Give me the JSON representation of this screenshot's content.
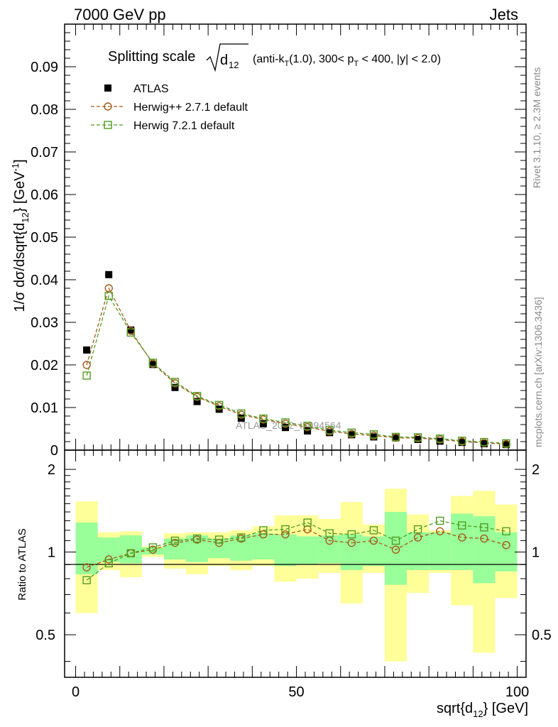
{
  "header": {
    "left": "7000 GeV pp",
    "right": "Jets"
  },
  "side_labels": {
    "rivet": "Rivet 3.1.10, ≥ 2.3M events",
    "mcplots": "mcplots.cern.ch [arXiv:1306.3436]"
  },
  "watermark": "ATLAS_2012_I1094564",
  "colors": {
    "data": "#000000",
    "herwigpp": "#a65a19",
    "herwig7": "#4f9c1f",
    "band_inner": "#99ff99",
    "band_outer": "#ffff99"
  },
  "chart_data": [
    {
      "type": "scatter",
      "title": "Splitting scale",
      "title_detail": "(anti-k_T(1.0), 300< p_T < 400, |y| < 2.0)",
      "xlabel": "sqrt{d_12} [GeV]",
      "ylabel": "1/σ dσ/dsqrt{d_12} [GeV^-1]",
      "xlim": [
        -2.5,
        102
      ],
      "ylim": [
        0,
        0.1
      ],
      "yticks": [
        "0",
        "0.01",
        "0.02",
        "0.03",
        "0.04",
        "0.05",
        "0.06",
        "0.07",
        "0.08",
        "0.09"
      ],
      "legend_position": "top-left",
      "x": [
        2.5,
        7.5,
        12.5,
        17.5,
        22.5,
        27.5,
        32.5,
        37.5,
        42.5,
        47.5,
        52.5,
        57.5,
        62.5,
        67.5,
        72.5,
        77.5,
        82.5,
        87.5,
        92.5,
        97.5
      ],
      "series": [
        {
          "name": "ATLAS",
          "marker": "filled-square",
          "values": [
            0.0235,
            0.0412,
            0.0282,
            0.0201,
            0.0147,
            0.0114,
            0.0096,
            0.0075,
            0.0062,
            0.0053,
            0.0045,
            0.0041,
            0.0036,
            0.0031,
            0.0029,
            0.0025,
            0.0021,
            0.0018,
            0.0015,
            0.0013
          ]
        },
        {
          "name": "Herwig++ 2.7.1 default",
          "marker": "open-circle",
          "line": "dashed",
          "values": [
            0.02,
            0.038,
            0.028,
            0.0203,
            0.0157,
            0.0125,
            0.0103,
            0.0083,
            0.0072,
            0.0062,
            0.0054,
            0.0044,
            0.0038,
            0.0034,
            0.0029,
            0.0028,
            0.0025,
            0.002,
            0.0017,
            0.0014
          ]
        },
        {
          "name": "Herwig 7.2.1 default",
          "marker": "open-square",
          "line": "dashed",
          "values": [
            0.0175,
            0.0362,
            0.0276,
            0.0205,
            0.016,
            0.0127,
            0.0106,
            0.0086,
            0.0074,
            0.0065,
            0.0057,
            0.0047,
            0.0041,
            0.0037,
            0.0031,
            0.003,
            0.0027,
            0.0022,
            0.0019,
            0.0016
          ]
        }
      ]
    },
    {
      "type": "scatter",
      "ylabel": "Ratio to ATLAS",
      "xlabel": "sqrt{d_12} [GeV]",
      "xlim": [
        -2.5,
        102
      ],
      "ylim": [
        0.35,
        2.35
      ],
      "ylog": true,
      "xticks": [
        "0",
        "50",
        "100"
      ],
      "yticks": [
        "0.5",
        "1",
        "2"
      ],
      "bin_edges": [
        0,
        5,
        10,
        15,
        20,
        25,
        30,
        35,
        40,
        45,
        50,
        55,
        60,
        65,
        70,
        75,
        80,
        85,
        90,
        95,
        100
      ],
      "band_inner": [
        [
          0.83,
          1.28
        ],
        [
          0.92,
          1.13
        ],
        [
          0.91,
          1.15
        ],
        [
          0.98,
          1.04
        ],
        [
          0.94,
          1.12
        ],
        [
          0.92,
          1.15
        ],
        [
          0.95,
          1.12
        ],
        [
          0.93,
          1.15
        ],
        [
          0.94,
          1.17
        ],
        [
          0.89,
          1.16
        ],
        [
          0.9,
          1.14
        ],
        [
          0.91,
          1.15
        ],
        [
          0.86,
          1.16
        ],
        [
          0.89,
          1.14
        ],
        [
          0.76,
          1.4
        ],
        [
          0.86,
          1.18
        ],
        [
          0.86,
          1.18
        ],
        [
          0.86,
          1.38
        ],
        [
          0.77,
          1.35
        ],
        [
          0.85,
          1.18
        ]
      ],
      "band_outer": [
        [
          0.6,
          1.53
        ],
        [
          0.86,
          1.18
        ],
        [
          0.81,
          1.19
        ],
        [
          0.96,
          1.05
        ],
        [
          0.87,
          1.17
        ],
        [
          0.83,
          1.18
        ],
        [
          0.89,
          1.18
        ],
        [
          0.86,
          1.2
        ],
        [
          0.89,
          1.24
        ],
        [
          0.78,
          1.36
        ],
        [
          0.8,
          1.36
        ],
        [
          0.84,
          1.32
        ],
        [
          0.65,
          1.52
        ],
        [
          0.84,
          1.26
        ],
        [
          0.4,
          1.7
        ],
        [
          0.71,
          1.37
        ],
        [
          0.84,
          1.2
        ],
        [
          0.64,
          1.6
        ],
        [
          0.43,
          1.67
        ],
        [
          0.68,
          1.49
        ]
      ],
      "series": [
        {
          "name": "Herwig++ 2.7.1 default",
          "marker": "open-circle",
          "line": "dashed",
          "values": [
            0.88,
            0.94,
            0.99,
            1.02,
            1.08,
            1.11,
            1.08,
            1.12,
            1.16,
            1.16,
            1.21,
            1.1,
            1.08,
            1.1,
            1.02,
            1.13,
            1.19,
            1.13,
            1.12,
            1.06
          ]
        },
        {
          "name": "Herwig 7.2.1 default",
          "marker": "open-square",
          "line": "dashed",
          "values": [
            0.79,
            0.91,
            0.99,
            1.04,
            1.1,
            1.12,
            1.11,
            1.13,
            1.2,
            1.21,
            1.28,
            1.17,
            1.16,
            1.2,
            1.1,
            1.21,
            1.3,
            1.25,
            1.23,
            1.19
          ]
        }
      ]
    }
  ]
}
